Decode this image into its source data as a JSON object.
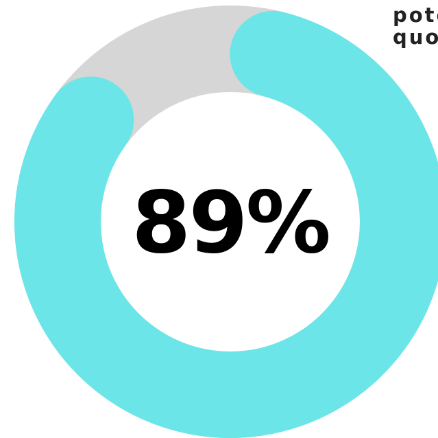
{
  "brand": {
    "line1": "potc",
    "line2": "quo"
  },
  "chart_data": {
    "type": "pie",
    "variant": "donut",
    "value": 89,
    "unit": "%",
    "label": "89%",
    "max": 100,
    "colors": {
      "fill": "#6ce5e8",
      "track": "#d6d6d6",
      "label": "#000000"
    }
  }
}
